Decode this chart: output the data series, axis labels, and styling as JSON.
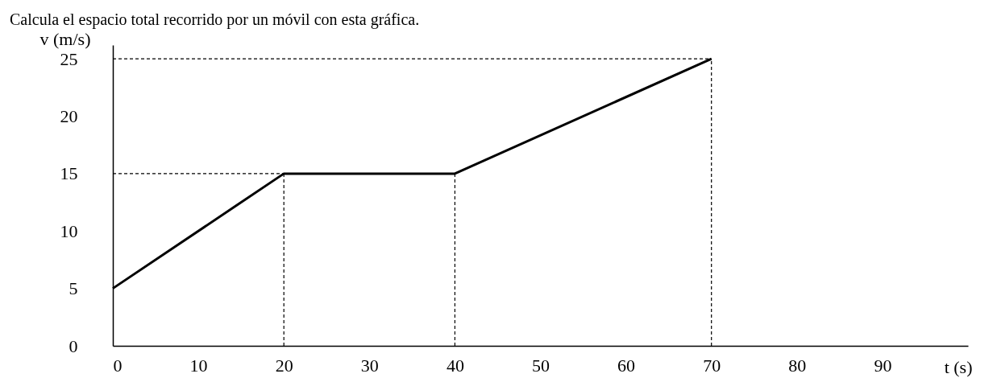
{
  "chart_data": {
    "type": "line",
    "title": "Calcula el espacio total recorrido por un móvil con esta gráfica.",
    "xlabel": "t (s)",
    "ylabel": "v (m/s)",
    "x": [
      0,
      20,
      40,
      70
    ],
    "series": [
      {
        "color": "#000000",
        "values": [
          5,
          15,
          15,
          25
        ]
      }
    ],
    "xlim": [
      0,
      100
    ],
    "ylim": [
      0,
      26.2
    ],
    "xticks": [
      0,
      10,
      20,
      30,
      40,
      50,
      60,
      70,
      80,
      90
    ],
    "yticks": [
      0,
      5,
      10,
      15,
      20,
      25
    ],
    "ref_lines": [
      {
        "axis": "y",
        "value": 15,
        "line_style": "dashed",
        "color": "#000000"
      },
      {
        "axis": "y",
        "value": 25,
        "line_style": "dashed",
        "color": "#000000"
      },
      {
        "axis": "x",
        "value": 20,
        "line_style": "dashed",
        "color": "#000000"
      },
      {
        "axis": "x",
        "value": 40,
        "line_style": "dashed",
        "color": "#000000"
      },
      {
        "axis": "x",
        "value": 70,
        "line_style": "dashed",
        "color": "#000000"
      }
    ]
  }
}
